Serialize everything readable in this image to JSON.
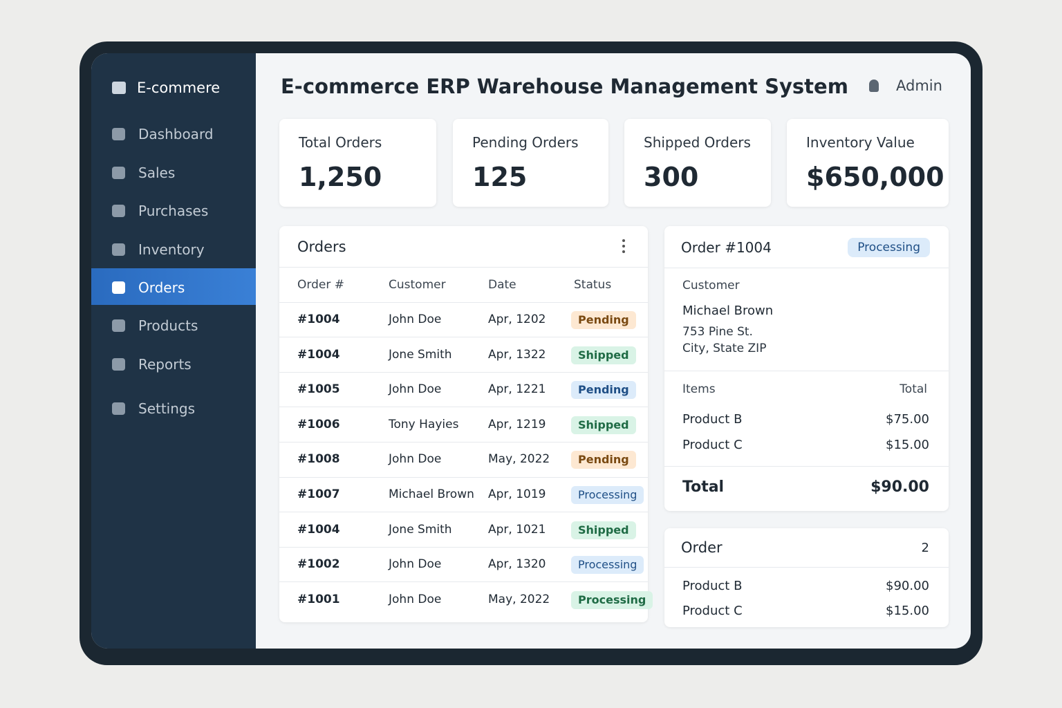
{
  "sidebar": {
    "brand": "E-commere",
    "nav": [
      {
        "label": "Dashboard",
        "active": false
      },
      {
        "label": "Sales",
        "active": false
      },
      {
        "label": "Purchases",
        "active": false
      },
      {
        "label": "Inventory",
        "active": false
      },
      {
        "label": "Orders",
        "active": true
      },
      {
        "label": "Products",
        "active": false
      },
      {
        "label": "Reports",
        "active": false
      },
      {
        "label": "Settings",
        "active": false
      }
    ]
  },
  "header": {
    "title": "E-commerce ERP Warehouse Management System",
    "user": "Admin"
  },
  "stats": [
    {
      "label": "Total Orders",
      "value": "1,250"
    },
    {
      "label": "Pending Orders",
      "value": "125"
    },
    {
      "label": "Shipped Orders",
      "value": "300"
    },
    {
      "label": "Inventory Value",
      "value": "$650,000"
    }
  ],
  "orders": {
    "title": "Orders",
    "columns": [
      "Order #",
      "Customer",
      "Date",
      "Status"
    ],
    "rows": [
      {
        "cells": [
          "#1004",
          "John Doe",
          "Apr, 1202",
          "Pending"
        ],
        "tone": "orange"
      },
      {
        "cells": [
          "#1004",
          "Jone Smith",
          "Apr, 1322",
          "Shipped"
        ],
        "tone": "green"
      },
      {
        "cells": [
          "#1005",
          "John Doe",
          "Apr, 1221",
          "Pending"
        ],
        "tone": "blue"
      },
      {
        "cells": [
          "#1006",
          "Tony Hayies",
          "Apr, 1219",
          "Shipped"
        ],
        "tone": "green"
      },
      {
        "cells": [
          "#1008",
          "John Doe",
          "May, 2022",
          "Pending"
        ],
        "tone": "orange"
      },
      {
        "cells": [
          "#1007",
          "Michael Brown",
          "Apr, 1019",
          "Processing"
        ],
        "tone": "blue"
      },
      {
        "cells": [
          "#1004",
          "Jone Smith",
          "Apr, 1021",
          "Shipped"
        ],
        "tone": "green"
      },
      {
        "cells": [
          "#1002",
          "John Doe",
          "Apr, 1320",
          "Processing"
        ],
        "tone": "blue"
      },
      {
        "cells": [
          "#1001",
          "John Doe",
          "May, 2022",
          "Processing"
        ],
        "tone": "green"
      }
    ]
  },
  "detail": {
    "title": "Order #1004",
    "status": "Processing",
    "customer_label": "Customer",
    "customer_name": "Michael Brown",
    "address": [
      "753 Pine St.",
      "City, State ZIP"
    ],
    "items_label": "Items",
    "total_label": "Total",
    "items": [
      [
        "Product B",
        "$75.00"
      ],
      [
        "Product C",
        "$15.00"
      ]
    ],
    "grand_total_label": "Total",
    "grand_total": "$90.00"
  },
  "order2": {
    "title": "Order",
    "count": "2",
    "items": [
      [
        "Product B",
        "$90.00"
      ],
      [
        "Product C",
        "$15.00"
      ]
    ]
  }
}
